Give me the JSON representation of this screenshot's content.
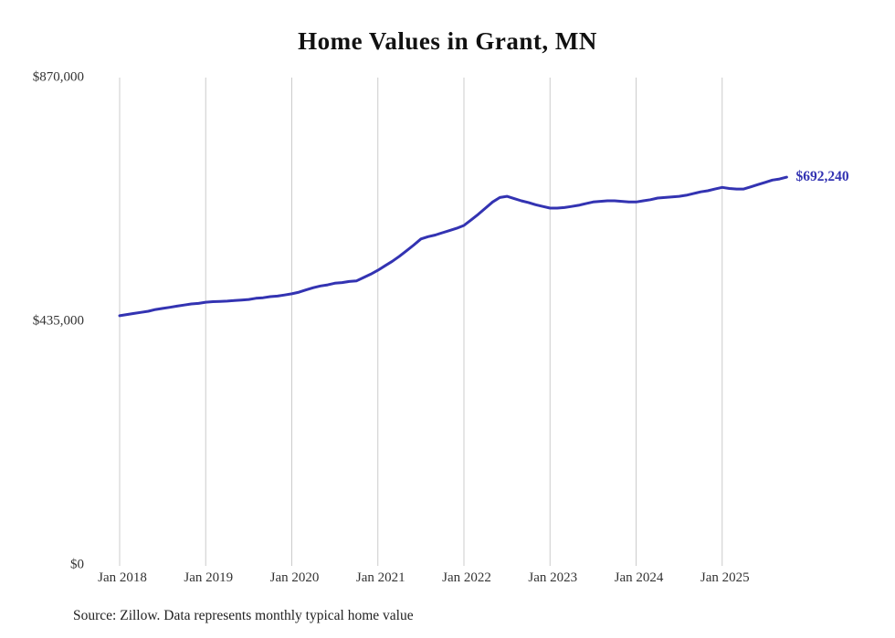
{
  "chart": {
    "title": "Home Values in Grant, MN",
    "source_note": "Source: Zillow. Data represents monthly typical home value",
    "end_label": "$692,240",
    "line_color": "#3333b2",
    "grid_color": "#cccccc",
    "title_color": "#111111",
    "axis_label_color": "#333333"
  },
  "chart_data": {
    "type": "line",
    "title": "Home Values in Grant, MN",
    "series_name": "Typical home value (monthly)",
    "x_start": "2018-01",
    "x_interval": "monthly",
    "x_ticks": [
      "Jan 2018",
      "Jan 2019",
      "Jan 2020",
      "Jan 2021",
      "Jan 2022",
      "Jan 2023",
      "Jan 2024",
      "Jan 2025"
    ],
    "y_ticks": [
      {
        "label": "$870,000",
        "value": 870000
      },
      {
        "label": "$435,000",
        "value": 435000
      },
      {
        "label": "$0",
        "value": 0
      }
    ],
    "ylim": [
      0,
      870000
    ],
    "grid": "vertical-only",
    "legend": "none",
    "latest_value": 692240,
    "annotation": "$692,240",
    "values": [
      445000,
      447000,
      449000,
      451000,
      453000,
      456000,
      458000,
      460000,
      462000,
      464000,
      466000,
      467000,
      469000,
      470000,
      470500,
      471000,
      472000,
      473000,
      474000,
      476000,
      477000,
      479000,
      480000,
      482000,
      484000,
      487000,
      491000,
      495000,
      498000,
      500000,
      503000,
      504000,
      506000,
      507000,
      513000,
      519000,
      526000,
      534000,
      542000,
      551000,
      561000,
      571000,
      582000,
      586000,
      589000,
      593000,
      597000,
      601000,
      606000,
      616000,
      626000,
      637000,
      648000,
      656000,
      658000,
      654000,
      650000,
      647000,
      643000,
      640000,
      637000,
      637000,
      638000,
      640000,
      642000,
      645000,
      648000,
      649000,
      650000,
      650000,
      649000,
      648000,
      648000,
      650000,
      652000,
      655000,
      656000,
      657000,
      658000,
      660000,
      663000,
      666000,
      668000,
      671000,
      674000,
      672000,
      671000,
      671000,
      675000,
      679000,
      683000,
      687000,
      689000,
      692240
    ]
  }
}
